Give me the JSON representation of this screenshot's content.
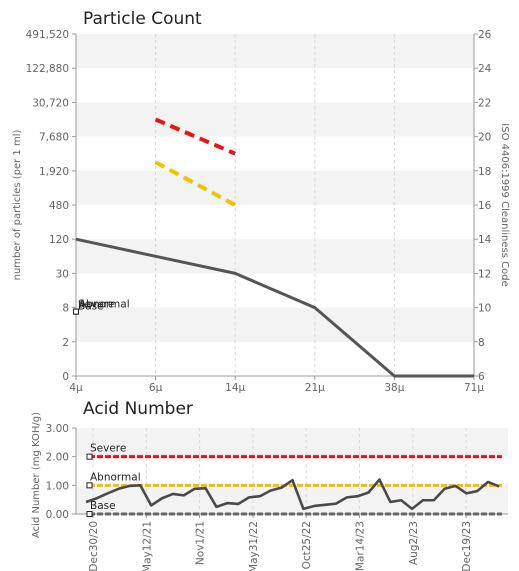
{
  "chart_data": [
    {
      "type": "line",
      "title": "Particle Count",
      "ylabel": "number of particles (per 1 ml)",
      "y2label": "ISO 4406:1999 Cleanliness Code",
      "y_scale": "log2",
      "categories": [
        "4μ",
        "6μ",
        "14μ",
        "21μ",
        "38μ",
        "71μ"
      ],
      "y_ticks": [
        "491,520",
        "122,880",
        "30,720",
        "7,680",
        "1,920",
        "480",
        "120",
        "30",
        "8",
        "2",
        "0"
      ],
      "y2_ticks": [
        "26",
        "24",
        "22",
        "20",
        "18",
        "16",
        "14",
        "12",
        "10",
        "8",
        "6"
      ],
      "y2_range": [
        6,
        26
      ],
      "series": [
        {
          "values": [
            14,
            13,
            12,
            10,
            6,
            6
          ],
          "color": "#555555",
          "style": "solid"
        },
        {
          "values": [
            null,
            21,
            19,
            null,
            null,
            null
          ],
          "color": "#ee1111",
          "style": "dashed"
        },
        {
          "values": [
            null,
            18.5,
            16,
            null,
            null,
            null
          ],
          "color": "#f2c200",
          "style": "dashed"
        }
      ],
      "annotations": [
        {
          "label": "Severe",
          "x_category": "4μ",
          "y_code": 10
        },
        {
          "label": "Abnormal",
          "x_category": "4μ",
          "y_code": 10
        },
        {
          "label": "Base",
          "x_category": "4μ",
          "y_code": 10
        }
      ],
      "legend": "none",
      "grid": true
    },
    {
      "type": "line",
      "title": "Acid Number",
      "ylabel": "Acid Number (mg KOH/g)",
      "ylim": [
        0,
        3
      ],
      "y_ticks": [
        "3.00",
        "2.00",
        "1.00",
        "0.00"
      ],
      "x_labels": [
        "Dec30/20",
        "May12/21",
        "Nov1/21",
        "May31/22",
        "Oct25/22",
        "Mar14/23",
        "Aug2/23",
        "Dec19/23"
      ],
      "thresholds": [
        {
          "label": "Severe",
          "value": 2.0,
          "color": "#ee1111"
        },
        {
          "label": "Abnormal",
          "value": 1.0,
          "color": "#f2c200"
        },
        {
          "label": "Base",
          "value": 0.0,
          "color": "#666666"
        }
      ],
      "series": [
        {
          "color": "#4a4a4a",
          "values": [
            0.42,
            0.55,
            0.72,
            0.88,
            0.98,
            1.0,
            0.3,
            0.55,
            0.7,
            0.65,
            0.88,
            0.9,
            0.25,
            0.38,
            0.35,
            0.58,
            0.62,
            0.82,
            0.92,
            1.18,
            0.18,
            0.28,
            0.32,
            0.36,
            0.58,
            0.62,
            0.75,
            1.2,
            0.42,
            0.48,
            0.18,
            0.48,
            0.48,
            0.88,
            0.98,
            0.72,
            0.8,
            1.12,
            0.96
          ]
        }
      ],
      "legend": "none",
      "grid": true
    }
  ]
}
